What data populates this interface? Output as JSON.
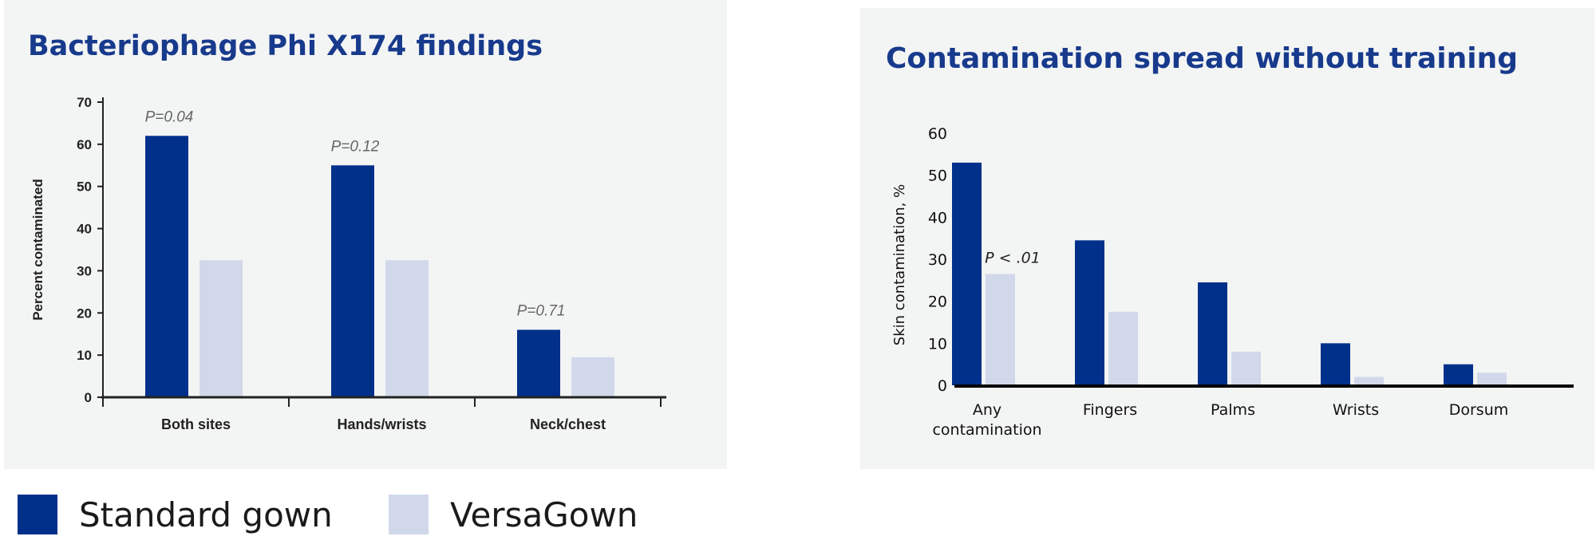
{
  "colors": {
    "standard": "#00308a",
    "versa": "#d1d8ea",
    "panel": "#f3f4f4",
    "title": "#173a8c"
  },
  "legend": [
    {
      "label": "Standard gown",
      "color": "#00308a"
    },
    {
      "label": "VersaGown",
      "color": "#d1d8ea"
    }
  ],
  "chart_data": [
    {
      "type": "bar",
      "title": "Bacteriophage Phi X174 findings",
      "xlabel": "",
      "ylabel": "Percent contaminated",
      "ylim": [
        0,
        70
      ],
      "yticks": [
        0,
        10,
        20,
        30,
        40,
        50,
        60,
        70
      ],
      "categories": [
        "Both sites",
        "Hands/wrists",
        "Neck/chest"
      ],
      "series": [
        {
          "name": "Standard gown",
          "values": [
            62,
            55,
            16
          ]
        },
        {
          "name": "VersaGown",
          "values": [
            32.5,
            32.5,
            9.5
          ]
        }
      ],
      "annotations": [
        "P=0.04",
        "P=0.12",
        "P=0.71"
      ],
      "grid": false,
      "legend": "bottom-left"
    },
    {
      "type": "bar",
      "title": "Contamination spread without training",
      "xlabel": "",
      "ylabel": "Skin contamination, %",
      "ylim": [
        0,
        60
      ],
      "yticks": [
        0,
        10,
        20,
        30,
        40,
        50,
        60
      ],
      "categories": [
        [
          "Any",
          "contamination"
        ],
        [
          "Fingers"
        ],
        [
          "Palms"
        ],
        [
          "Wrists"
        ],
        [
          "Dorsum"
        ]
      ],
      "series": [
        {
          "name": "Standard gown",
          "values": [
            53,
            34.5,
            24.5,
            10,
            5
          ]
        },
        {
          "name": "VersaGown",
          "values": [
            26.5,
            17.5,
            8,
            2,
            3
          ]
        }
      ],
      "annotations": [
        "P < .01"
      ],
      "grid": false,
      "legend": "bottom-left"
    }
  ]
}
